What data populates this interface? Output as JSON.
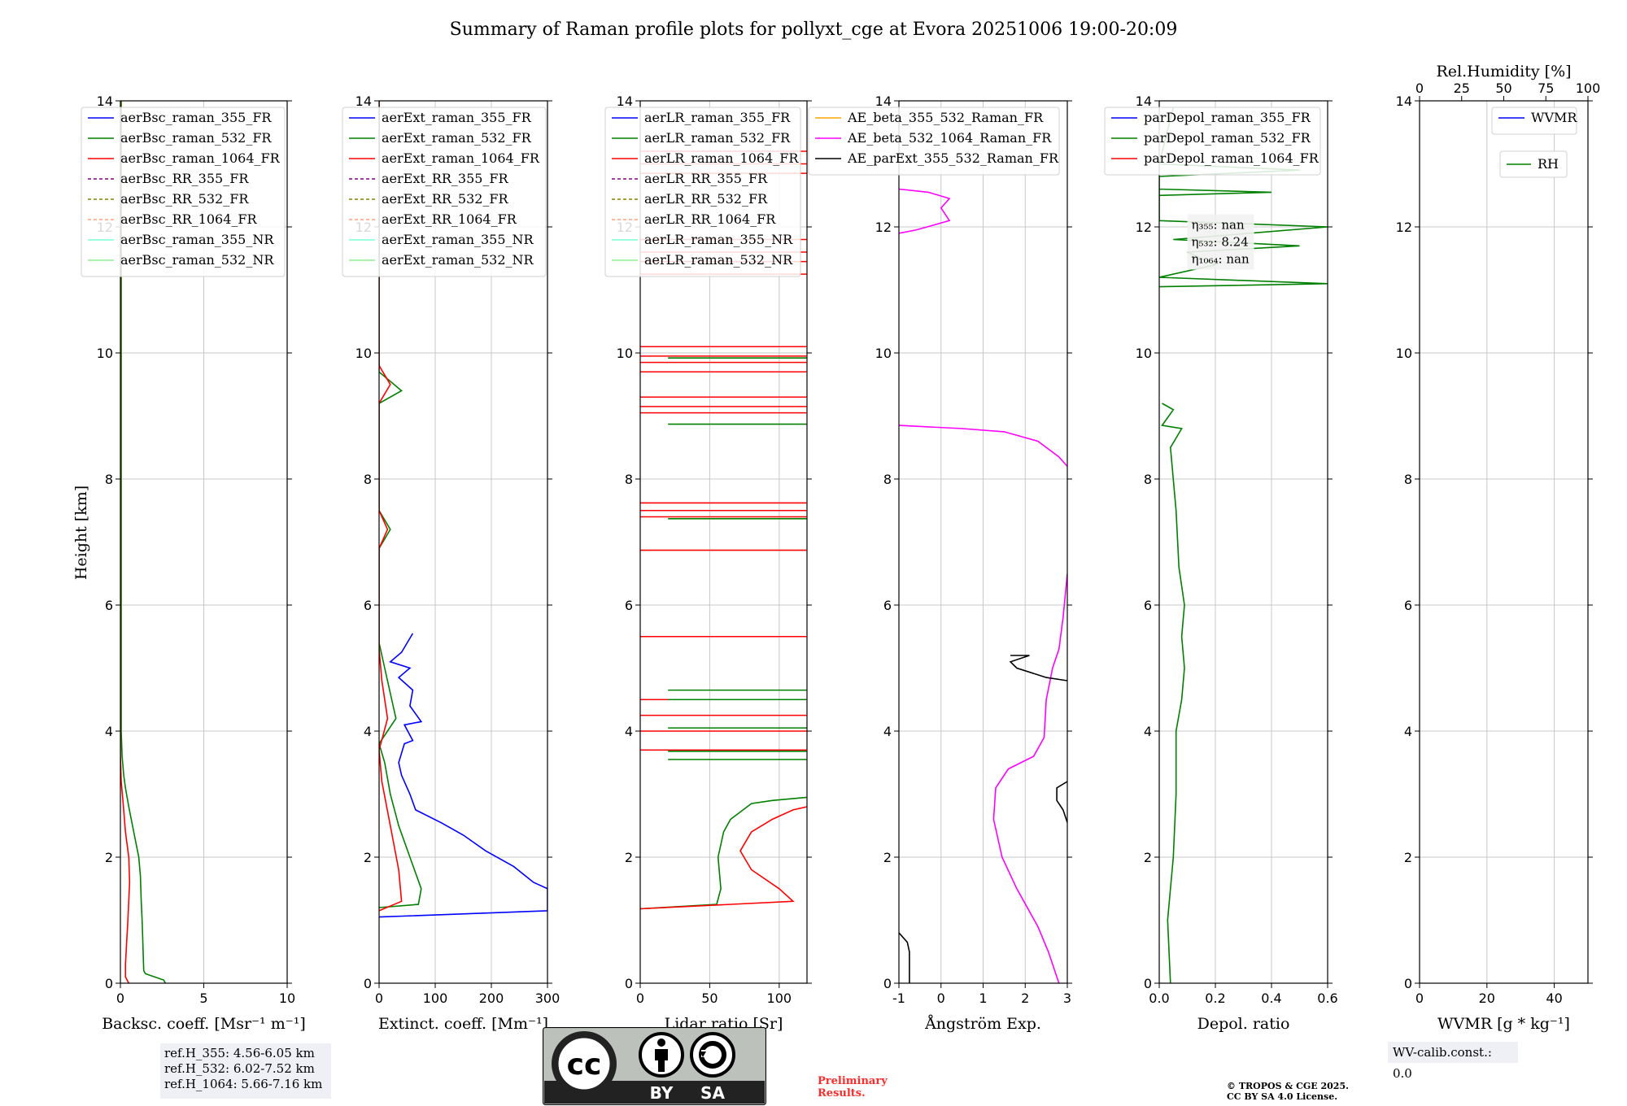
{
  "figure_title": "Summary of Raman profile plots for pollyxt_cge at Evora 20251006 19:00-20:09",
  "y_label": "Height [km]",
  "ref_heights": [
    "ref.H_355: 4.56-6.05 km",
    "ref.H_532: 6.02-7.52 km",
    "ref.H_1064: 5.66-7.16 km"
  ],
  "wv_calib": "WV-calib.const.: 0.0",
  "preliminary": [
    "Preliminary",
    "Results."
  ],
  "copyright": [
    "© TROPOS & CGE 2025.",
    "CC BY SA 4.0 License."
  ],
  "license_badge": {
    "icon": "cc-by-sa-icon",
    "labels": [
      "BY",
      "SA"
    ],
    "text": "cc"
  },
  "colors": {
    "blue": "#0000ff",
    "green": "#008000",
    "red": "#ff0000",
    "purple": "#800080",
    "olive": "#808000",
    "salmon": "#ffa07a",
    "cyan": "#7fffd4",
    "lightgreen": "#90ee90",
    "magenta": "#ff00ff",
    "orange": "#ffa500",
    "black": "#000000"
  },
  "chart_data": [
    {
      "type": "line",
      "id": "backscatter",
      "xlabel": "Backsc. coeff. [Msr⁻¹ m⁻¹]",
      "ylabel": "Height [km]",
      "xlim": [
        0,
        10
      ],
      "ylim": [
        0,
        14
      ],
      "xticks": [
        0,
        5,
        10
      ],
      "yticks": [
        0,
        2,
        4,
        6,
        8,
        10,
        12,
        14
      ],
      "legend": [
        "aerBsc_raman_355_FR",
        "aerBsc_raman_532_FR",
        "aerBsc_raman_1064_FR",
        "aerBsc_RR_355_FR",
        "aerBsc_RR_532_FR",
        "aerBsc_RR_1064_FR",
        "aerBsc_raman_355_NR",
        "aerBsc_raman_532_NR"
      ],
      "series": [
        {
          "name": "aerBsc_raman_532_FR",
          "color": "green",
          "points": [
            [
              2.7,
              0
            ],
            [
              2.6,
              0.05
            ],
            [
              1.5,
              0.15
            ],
            [
              1.4,
              0.2
            ],
            [
              1.3,
              1
            ],
            [
              1.25,
              1.3
            ],
            [
              1.2,
              1.7
            ],
            [
              1.1,
              2
            ],
            [
              0.8,
              2.4
            ],
            [
              0.5,
              2.8
            ],
            [
              0.3,
              3.1
            ],
            [
              0.2,
              3.3
            ],
            [
              0.1,
              3.6
            ],
            [
              0.05,
              4
            ],
            [
              0.05,
              14
            ]
          ]
        },
        {
          "name": "aerBsc_raman_1064_FR",
          "color": "red",
          "points": [
            [
              0.5,
              0
            ],
            [
              0.3,
              0.1
            ],
            [
              0.3,
              0.3
            ],
            [
              0.45,
              1
            ],
            [
              0.55,
              1.6
            ],
            [
              0.5,
              2
            ],
            [
              0.3,
              2.4
            ],
            [
              0.15,
              2.9
            ],
            [
              0.05,
              3.2
            ],
            [
              0,
              3.6
            ],
            [
              0,
              14
            ]
          ]
        }
      ]
    },
    {
      "type": "line",
      "id": "extinction",
      "xlabel": "Extinct. coeff. [Mm⁻¹]",
      "xlim": [
        0,
        300
      ],
      "ylim": [
        0,
        14
      ],
      "xticks": [
        0,
        100,
        200,
        300
      ],
      "yticks": [
        0,
        2,
        4,
        6,
        8,
        10,
        12,
        14
      ],
      "legend": [
        "aerExt_raman_355_FR",
        "aerExt_raman_532_FR",
        "aerExt_raman_1064_FR",
        "aerExt_RR_355_FR",
        "aerExt_RR_532_FR",
        "aerExt_RR_1064_FR",
        "aerExt_raman_355_NR",
        "aerExt_raman_532_NR"
      ],
      "series": [
        {
          "name": "aerExt_raman_355_FR",
          "color": "blue",
          "points": [
            [
              0,
              1.05
            ],
            [
              300,
              1.15
            ],
            [
              300,
              1.5
            ],
            [
              275,
              1.6
            ],
            [
              240,
              1.85
            ],
            [
              190,
              2.1
            ],
            [
              150,
              2.35
            ],
            [
              110,
              2.55
            ],
            [
              65,
              2.75
            ],
            [
              55,
              3.0
            ],
            [
              40,
              3.3
            ],
            [
              35,
              3.5
            ],
            [
              45,
              3.8
            ],
            [
              60,
              3.85
            ],
            [
              45,
              4.1
            ],
            [
              75,
              4.15
            ],
            [
              55,
              4.4
            ],
            [
              60,
              4.65
            ],
            [
              35,
              4.85
            ],
            [
              55,
              5.0
            ],
            [
              20,
              5.1
            ],
            [
              40,
              5.25
            ],
            [
              60,
              5.55
            ]
          ]
        },
        {
          "name": "aerExt_raman_532_FR",
          "color": "green",
          "points": [
            [
              0,
              1.2
            ],
            [
              70,
              1.25
            ],
            [
              75,
              1.5
            ],
            [
              55,
              2.0
            ],
            [
              35,
              2.5
            ],
            [
              20,
              3.0
            ],
            [
              10,
              3.5
            ],
            [
              0,
              3.8
            ],
            [
              30,
              4.2
            ],
            [
              20,
              4.6
            ],
            [
              10,
              5.0
            ],
            [
              0,
              5.4
            ],
            [
              0,
              6.9
            ],
            [
              20,
              7.2
            ],
            [
              0,
              7.5
            ],
            [
              0,
              9.2
            ],
            [
              40,
              9.4
            ],
            [
              0,
              9.7
            ],
            [
              0,
              14
            ]
          ]
        },
        {
          "name": "aerExt_raman_1064_FR",
          "color": "red",
          "points": [
            [
              0,
              1.15
            ],
            [
              40,
              1.3
            ],
            [
              35,
              1.8
            ],
            [
              20,
              2.5
            ],
            [
              5,
              3.2
            ],
            [
              0,
              3.7
            ],
            [
              15,
              4.2
            ],
            [
              5,
              4.8
            ],
            [
              0,
              5.3
            ],
            [
              0,
              6.9
            ],
            [
              15,
              7.2
            ],
            [
              0,
              7.5
            ],
            [
              0,
              9.2
            ],
            [
              20,
              9.5
            ],
            [
              0,
              9.8
            ],
            [
              0,
              14
            ]
          ]
        }
      ]
    },
    {
      "type": "line",
      "id": "lidar_ratio",
      "xlabel": "Lidar ratio [Sr]",
      "xlim": [
        0,
        120
      ],
      "ylim": [
        0,
        14
      ],
      "xticks": [
        0,
        50,
        100
      ],
      "yticks": [
        0,
        2,
        4,
        6,
        8,
        10,
        12,
        14
      ],
      "legend": [
        "aerLR_raman_355_FR",
        "aerLR_raman_532_FR",
        "aerLR_raman_1064_FR",
        "aerLR_RR_355_FR",
        "aerLR_RR_532_FR",
        "aerLR_RR_1064_FR",
        "aerLR_raman_355_NR",
        "aerLR_raman_532_NR"
      ],
      "series": [
        {
          "name": "aerLR_raman_532_FR",
          "color": "green",
          "points": [
            [
              0,
              1.18
            ],
            [
              55,
              1.25
            ],
            [
              58,
              1.5
            ],
            [
              56,
              2.0
            ],
            [
              60,
              2.4
            ],
            [
              65,
              2.6
            ],
            [
              80,
              2.85
            ],
            [
              95,
              2.9
            ],
            [
              120,
              2.95
            ]
          ]
        },
        {
          "name": "aerLR_raman_1064_FR",
          "color": "red",
          "points": [
            [
              0,
              1.18
            ],
            [
              110,
              1.3
            ],
            [
              100,
              1.5
            ],
            [
              80,
              1.8
            ],
            [
              72,
              2.1
            ],
            [
              80,
              2.4
            ],
            [
              95,
              2.6
            ],
            [
              110,
              2.75
            ],
            [
              120,
              2.8
            ]
          ]
        }
      ],
      "hlines_red_km": [
        3.7,
        4.0,
        4.25,
        4.5,
        5.5,
        6.87,
        7.4,
        7.5,
        7.62,
        9.05,
        9.15,
        9.3,
        9.7,
        9.85,
        9.95,
        10.1,
        11.25,
        11.45,
        11.6,
        11.8,
        12.85,
        13.0,
        13.2
      ],
      "hlines_green_km": [
        3.55,
        3.68,
        4.05,
        4.5,
        4.65,
        8.87,
        9.92,
        7.37
      ]
    },
    {
      "type": "line",
      "id": "angstrom",
      "xlabel": "Ångström Exp.",
      "xlim": [
        -1,
        3
      ],
      "ylim": [
        0,
        14
      ],
      "xticks": [
        -1,
        0,
        1,
        2,
        3
      ],
      "yticks": [
        0,
        2,
        4,
        6,
        8,
        10,
        12,
        14
      ],
      "legend": [
        "AE_beta_355_532_Raman_FR",
        "AE_beta_532_1064_Raman_FR",
        "AE_parExt_355_532_Raman_FR"
      ],
      "series": [
        {
          "name": "AE_beta_532_1064_Raman_FR",
          "color": "magenta",
          "points": [
            [
              2.8,
              0
            ],
            [
              2.55,
              0.5
            ],
            [
              2.3,
              0.9
            ],
            [
              1.8,
              1.5
            ],
            [
              1.45,
              2.0
            ],
            [
              1.25,
              2.6
            ],
            [
              1.3,
              3.1
            ],
            [
              1.6,
              3.4
            ],
            [
              2.2,
              3.6
            ],
            [
              2.45,
              3.9
            ],
            [
              2.5,
              4.5
            ],
            [
              2.65,
              5.0
            ],
            [
              2.8,
              5.3
            ],
            [
              2.9,
              5.8
            ],
            [
              3.0,
              6.5
            ]
          ]
        },
        {
          "name": "AE_beta_532_1064_Raman_FR b",
          "color": "magenta",
          "points": [
            [
              -1,
              8.85
            ],
            [
              0.5,
              8.8
            ],
            [
              1.5,
              8.75
            ],
            [
              2.3,
              8.6
            ],
            [
              2.8,
              8.35
            ],
            [
              3.0,
              8.2
            ]
          ]
        },
        {
          "name": "AE_beta_532_1064_Raman_FR c",
          "color": "magenta",
          "points": [
            [
              -1,
              11.9
            ],
            [
              -0.6,
              11.95
            ],
            [
              0.2,
              12.1
            ],
            [
              0,
              12.3
            ],
            [
              0.2,
              12.45
            ],
            [
              -0.3,
              12.55
            ],
            [
              -1,
              12.6
            ]
          ]
        },
        {
          "name": "AE_parExt_355_532_Raman_FR",
          "color": "black",
          "points": [
            [
              -1,
              0.8
            ],
            [
              -0.8,
              0.65
            ],
            [
              -0.75,
              0.5
            ],
            [
              -0.75,
              0
            ]
          ]
        },
        {
          "name": "AE_parExt_355_532_Raman_FR b",
          "color": "black",
          "points": [
            [
              1.65,
              5.2
            ],
            [
              2.1,
              5.2
            ],
            [
              1.65,
              5.1
            ],
            [
              1.8,
              5.0
            ],
            [
              2.5,
              4.85
            ],
            [
              3.0,
              4.8
            ]
          ]
        },
        {
          "name": "AE_parExt_355_532_Raman_FR c",
          "color": "black",
          "points": [
            [
              3.0,
              3.2
            ],
            [
              2.75,
              3.1
            ],
            [
              2.75,
              2.9
            ],
            [
              2.9,
              2.75
            ],
            [
              3.0,
              2.55
            ]
          ]
        }
      ]
    },
    {
      "type": "line",
      "id": "depol",
      "xlabel": "Depol. ratio",
      "xlim": [
        0,
        0.6
      ],
      "ylim": [
        0,
        14
      ],
      "xticks": [
        0.0,
        0.2,
        0.4,
        0.6
      ],
      "xticklabels": [
        "0.0",
        "0.2",
        "0.4",
        "0.6"
      ],
      "yticks": [
        0,
        2,
        4,
        6,
        8,
        10,
        12,
        14
      ],
      "legend": [
        "parDepol_raman_355_FR",
        "parDepol_raman_532_FR",
        "parDepol_raman_1064_FR"
      ],
      "eta": [
        "η₃₅₅: nan",
        "η₅₃₂: 8.24",
        "η₁₀₆₄: nan"
      ],
      "series": [
        {
          "name": "parDepol_raman_532_FR",
          "color": "green",
          "points": [
            [
              0.04,
              0
            ],
            [
              0.03,
              1.0
            ],
            [
              0.05,
              2.0
            ],
            [
              0.06,
              3.0
            ],
            [
              0.06,
              4.0
            ],
            [
              0.08,
              4.5
            ],
            [
              0.09,
              5.0
            ],
            [
              0.08,
              5.5
            ],
            [
              0.09,
              6.0
            ],
            [
              0.07,
              6.6
            ],
            [
              0.06,
              7.5
            ],
            [
              0.04,
              8.5
            ],
            [
              0.08,
              8.8
            ],
            [
              0.01,
              8.85
            ],
            [
              0.05,
              9.1
            ],
            [
              0.01,
              9.2
            ]
          ]
        },
        {
          "name": "parDepol_raman_532_FR b",
          "color": "green",
          "points": [
            [
              0.0,
              11.05
            ],
            [
              0.6,
              11.1
            ],
            [
              0.0,
              11.2
            ],
            [
              0.2,
              11.4
            ],
            [
              0.1,
              11.6
            ],
            [
              0.5,
              11.7
            ],
            [
              0.05,
              11.8
            ],
            [
              0.6,
              12.0
            ],
            [
              0.0,
              12.1
            ],
            [
              0.0,
              12.6
            ],
            [
              0.4,
              12.55
            ],
            [
              0.0,
              12.5
            ],
            [
              0.0,
              12.8
            ],
            [
              0.5,
              12.9
            ],
            [
              0.0,
              13.0
            ],
            [
              0.05,
              13.9
            ]
          ]
        }
      ]
    },
    {
      "type": "line",
      "id": "wvmr",
      "xlabel": "WVMR [g * kg⁻¹]",
      "top_xlabel": "Rel.Humidity [%]",
      "xlim": [
        0,
        50
      ],
      "top_xlim": [
        0,
        100
      ],
      "ylim": [
        0,
        14
      ],
      "xticks": [
        0,
        20,
        40
      ],
      "top_xticks": [
        0,
        25,
        50,
        75,
        100
      ],
      "yticks": [
        0,
        2,
        4,
        6,
        8,
        10,
        12,
        14
      ],
      "legend": [
        "WVMR"
      ],
      "legend2": [
        "RH"
      ],
      "series": []
    }
  ]
}
